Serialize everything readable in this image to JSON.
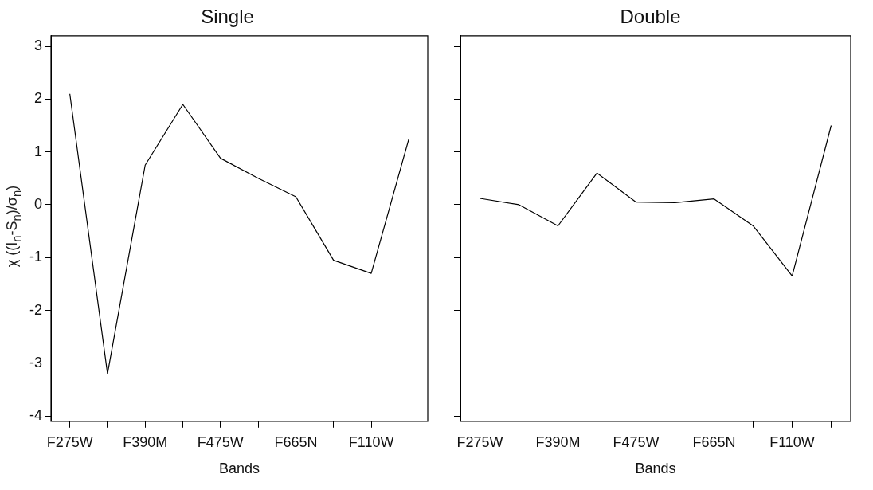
{
  "chart_data": [
    {
      "type": "line",
      "title": "Single",
      "xlabel": "Bands",
      "ylabel": "χ ((I$_{n}$-S$_{n}$)/σ$_{n}$)",
      "categories": [
        "F275W",
        null,
        "F390M",
        null,
        "F475W",
        null,
        "F665N",
        null,
        "F110W",
        null
      ],
      "series": [
        {
          "color": "#000000",
          "values": [
            2.1,
            -3.2,
            0.75,
            1.9,
            0.88,
            0.5,
            0.15,
            -1.05,
            -1.3,
            1.25
          ]
        }
      ],
      "ylim": [
        -4.1,
        3.2
      ],
      "yticks": [
        -4,
        -3,
        -2,
        -1,
        0,
        1,
        2,
        3
      ],
      "grid": false,
      "marker": "none",
      "line_style": "solid"
    },
    {
      "type": "line",
      "title": "Double",
      "xlabel": "Bands",
      "categories": [
        "F275W",
        null,
        "F390M",
        null,
        "F475W",
        null,
        "F665N",
        null,
        "F110W",
        null
      ],
      "series": [
        {
          "color": "#000000",
          "values": [
            0.12,
            0.0,
            -0.4,
            0.6,
            0.05,
            0.04,
            0.11,
            -0.4,
            -1.35,
            1.5
          ]
        }
      ],
      "ylim": [
        -4.1,
        3.2
      ],
      "yticks": [
        -4,
        -3,
        -2,
        -1,
        0,
        1,
        2,
        3
      ],
      "grid": false,
      "marker": "none",
      "line_style": "solid",
      "tick_labels": "x"
    }
  ]
}
